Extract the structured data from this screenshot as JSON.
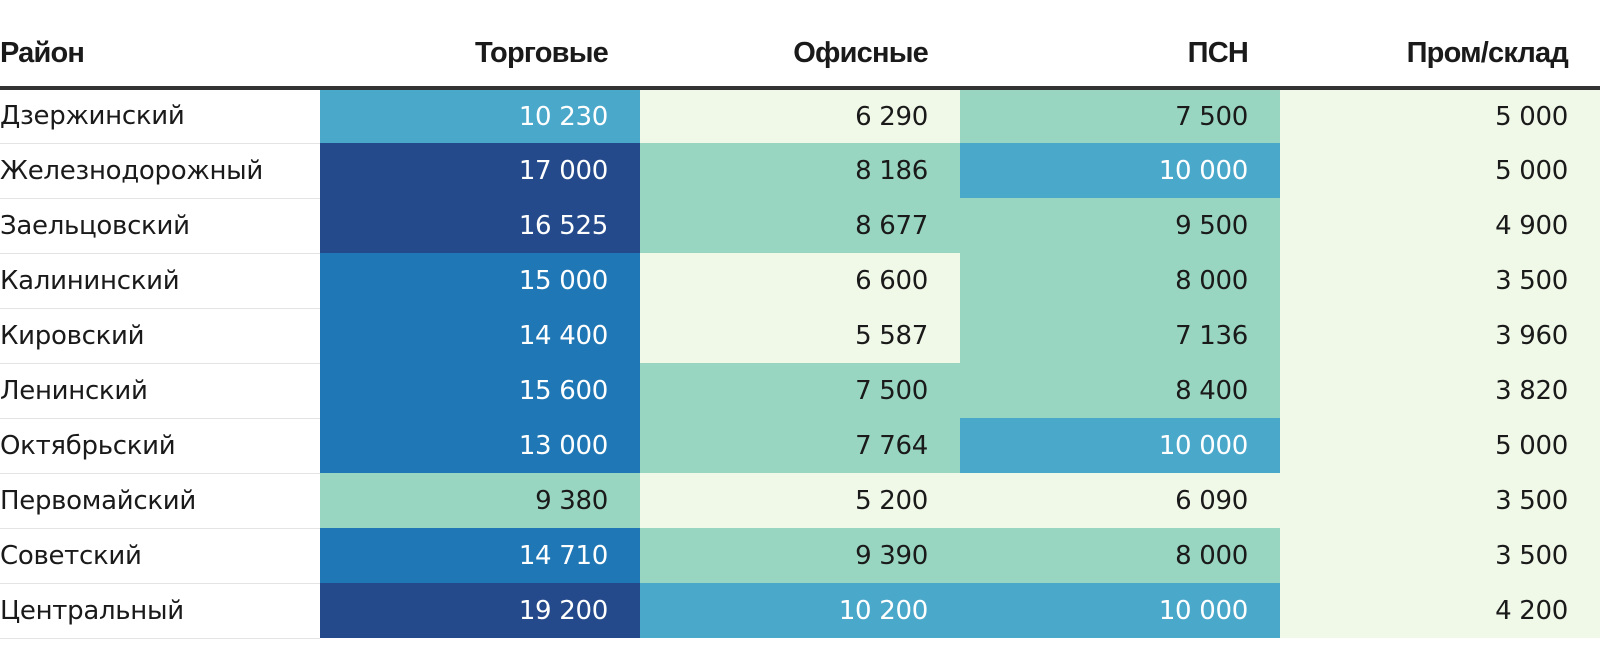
{
  "chart_data": {
    "type": "heatmap",
    "title": "",
    "row_header": "Район",
    "columns": [
      "Торговые",
      "Офисные",
      "ПСН",
      "Пром/склад"
    ],
    "rows": [
      {
        "name": "Дзержинский",
        "values": [
          10230,
          6290,
          7500,
          5000
        ]
      },
      {
        "name": "Железнодорожный",
        "values": [
          17000,
          8186,
          10000,
          5000
        ]
      },
      {
        "name": "Заельцовский",
        "values": [
          16525,
          8677,
          9500,
          4900
        ]
      },
      {
        "name": "Калининский",
        "values": [
          15000,
          6600,
          8000,
          3500
        ]
      },
      {
        "name": "Кировский",
        "values": [
          14400,
          5587,
          7136,
          3960
        ]
      },
      {
        "name": "Ленинский",
        "values": [
          15600,
          7500,
          8400,
          3820
        ]
      },
      {
        "name": "Октябрьский",
        "values": [
          13000,
          7764,
          10000,
          5000
        ]
      },
      {
        "name": "Первомайский",
        "values": [
          9380,
          5200,
          6090,
          3500
        ]
      },
      {
        "name": "Советский",
        "values": [
          14710,
          9390,
          8000,
          3500
        ]
      },
      {
        "name": "Центральный",
        "values": [
          19200,
          10200,
          10000,
          4200
        ]
      }
    ],
    "color_scale": {
      "thresholds": [
        7000,
        10000,
        12000,
        16000
      ],
      "colors": [
        "#f0f9e8",
        "#98d6c1",
        "#4aa8cb",
        "#1f78b5",
        "#244a8b"
      ],
      "text_colors": [
        "#1a1a1a",
        "#1a1a1a",
        "#ffffff",
        "#ffffff",
        "#ffffff"
      ]
    },
    "number_format": "space-thousands"
  }
}
